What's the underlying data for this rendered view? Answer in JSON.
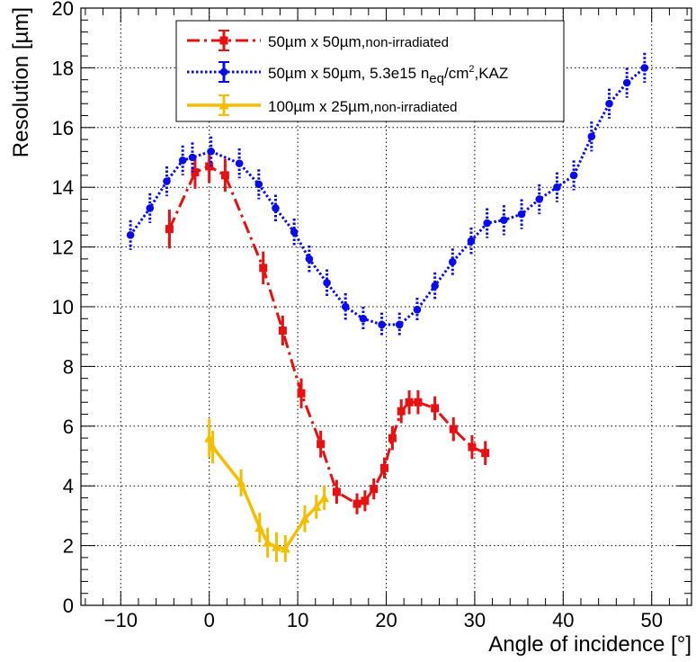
{
  "chart_data": {
    "type": "line",
    "xlabel": "Angle of incidence [°]",
    "ylabel": "Resolution [µm]",
    "xlim": [
      -14.5,
      54.5
    ],
    "ylim": [
      0,
      20
    ],
    "xticks": [
      -10,
      0,
      10,
      20,
      30,
      40,
      50
    ],
    "yticks": [
      0,
      2,
      4,
      6,
      8,
      10,
      12,
      14,
      16,
      18,
      20
    ],
    "xtick_labels": [
      "−10",
      "0",
      "10",
      "20",
      "30",
      "40",
      "50"
    ],
    "ytick_labels": [
      "0",
      "2",
      "4",
      "6",
      "8",
      "10",
      "12",
      "14",
      "16",
      "18",
      "20"
    ],
    "grid": true,
    "legend_position": "top-center",
    "series": [
      {
        "name_main": "50µm x 50µm,",
        "name_sub": "non-irradiated",
        "color": "#e81010",
        "line_style": "dash-dot",
        "marker": "square",
        "x": [
          -4.5,
          -1.6,
          0.0,
          1.8,
          6.1,
          8.3,
          10.4,
          12.6,
          14.4,
          16.7,
          17.6,
          18.6,
          19.8,
          20.7,
          21.7,
          22.6,
          23.6,
          25.5,
          27.6,
          29.7,
          31.2
        ],
        "y": [
          12.6,
          14.5,
          14.7,
          14.4,
          11.3,
          9.2,
          7.1,
          5.4,
          3.8,
          3.4,
          3.5,
          3.9,
          4.6,
          5.6,
          6.5,
          6.8,
          6.8,
          6.6,
          5.9,
          5.3,
          5.1
        ],
        "yerr": [
          0.65,
          0.55,
          0.55,
          0.55,
          0.55,
          0.5,
          0.5,
          0.45,
          0.4,
          0.35,
          0.35,
          0.35,
          0.35,
          0.4,
          0.4,
          0.4,
          0.4,
          0.4,
          0.4,
          0.4,
          0.4
        ]
      },
      {
        "name_main": "50µm x 50µm, 5.3e15 n",
        "name_sub": "eq",
        "name_tail": "/cm",
        "name_sup": "2",
        "name_end": ",KAZ",
        "color": "#0a0aee",
        "line_style": "dotted",
        "marker": "circle",
        "x": [
          -8.9,
          -6.7,
          -4.8,
          -3.0,
          -1.9,
          0.2,
          3.4,
          5.6,
          7.5,
          9.6,
          11.3,
          13.3,
          15.4,
          17.4,
          19.5,
          21.5,
          23.5,
          25.5,
          27.5,
          29.6,
          31.4,
          33.3,
          35.3,
          37.3,
          39.3,
          41.2,
          43.2,
          45.2,
          47.2,
          49.2
        ],
        "y": [
          12.4,
          13.3,
          14.2,
          14.9,
          15.0,
          15.2,
          14.8,
          14.1,
          13.3,
          12.5,
          11.6,
          10.8,
          10.0,
          9.6,
          9.4,
          9.4,
          9.9,
          10.7,
          11.5,
          12.2,
          12.8,
          12.9,
          13.1,
          13.6,
          14.0,
          14.4,
          15.7,
          16.8,
          17.5,
          18.0
        ],
        "yerr": [
          0.5,
          0.5,
          0.5,
          0.5,
          0.5,
          0.5,
          0.5,
          0.5,
          0.45,
          0.45,
          0.45,
          0.45,
          0.45,
          0.4,
          0.4,
          0.4,
          0.4,
          0.45,
          0.45,
          0.45,
          0.5,
          0.5,
          0.5,
          0.5,
          0.5,
          0.5,
          0.5,
          0.5,
          0.5,
          0.5
        ]
      },
      {
        "name_main": "100µm x 25µm,",
        "name_sub": "non-irradiated",
        "color": "#f5be00",
        "line_style": "solid",
        "marker": "triangle",
        "x": [
          0.0,
          0.4,
          3.6,
          5.7,
          6.6,
          7.6,
          8.6,
          10.8,
          12.1,
          13.0
        ],
        "y": [
          5.6,
          5.3,
          4.1,
          2.6,
          2.1,
          1.95,
          1.9,
          2.9,
          3.3,
          3.6
        ],
        "yerr": [
          0.65,
          0.55,
          0.45,
          0.5,
          0.5,
          0.5,
          0.45,
          0.45,
          0.4,
          0.4
        ]
      }
    ]
  }
}
